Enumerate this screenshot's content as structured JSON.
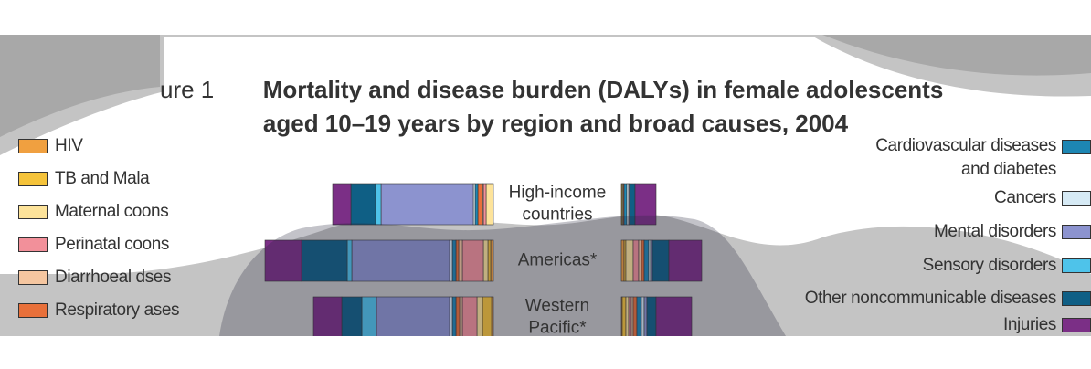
{
  "chart_data": {
    "type": "bar",
    "title_prefix": "ure 1",
    "title": [
      "Mortality and disease burden (DALYs) in female adolescents",
      "aged 10–19 years by region and broad causes, 2004"
    ],
    "categories": [
      [
        "High-income",
        "countries"
      ],
      [
        "Americas*"
      ],
      [
        "Western",
        "Pacific*"
      ]
    ],
    "series": [
      {
        "name": "HIV",
        "color": "#f0a040",
        "values": [
          0,
          3,
          2
        ],
        "values_right": [
          0,
          3,
          1
        ]
      },
      {
        "name": "TB and Mala",
        "color": "#f5c33a",
        "values": [
          0,
          3,
          10
        ],
        "values_right": [
          1,
          2,
          4
        ]
      },
      {
        "name": "Maternal coons",
        "color": "#fde39a",
        "values": [
          8,
          5,
          6
        ],
        "values_right": [
          1,
          8,
          3
        ]
      },
      {
        "name": "Perinatal coons",
        "color": "#f2909a",
        "values": [
          3,
          23,
          16
        ],
        "values_right": [
          0,
          6,
          3
        ]
      },
      {
        "name": "Diarrhoeal dses",
        "color": "#f5c6a0",
        "values": [
          1,
          4,
          3
        ],
        "values_right": [
          0,
          3,
          2
        ]
      },
      {
        "name": "Respiratory ases",
        "color": "#e8703a",
        "values": [
          5,
          3,
          4
        ],
        "values_right": [
          1,
          3,
          4
        ]
      },
      {
        "name": "Cardiovascular diseases and diabetes",
        "color": "#1d86b3",
        "values": [
          3,
          4,
          4
        ],
        "values_right": [
          3,
          5,
          5
        ]
      },
      {
        "name": "Cancers",
        "color": "#d6eaf5",
        "values": [
          2,
          3,
          3
        ],
        "values_right": [
          2,
          2,
          3
        ]
      },
      {
        "name": "Mental disorders",
        "color": "#8c93cf",
        "values": [
          101,
          107,
          80
        ],
        "values_right": [
          1,
          2,
          3
        ]
      },
      {
        "name": "Sensory disorders",
        "color": "#4ec3ea",
        "values": [
          6,
          5,
          16
        ],
        "values_right": [
          0,
          0,
          0
        ]
      },
      {
        "name": "Other noncommunicable diseases",
        "color": "#0f5f85",
        "values": [
          27,
          50,
          22
        ],
        "values_right": [
          6,
          18,
          10
        ]
      },
      {
        "name": "Injuries",
        "color": "#7b2f86",
        "values": [
          20,
          40,
          31
        ],
        "values_right": [
          23,
          36,
          39
        ]
      }
    ]
  }
}
